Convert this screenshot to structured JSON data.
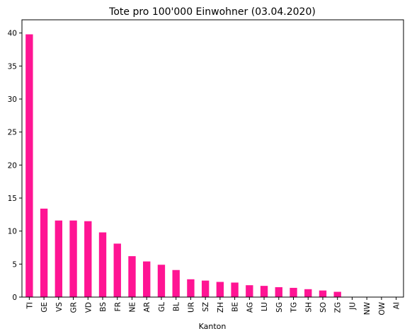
{
  "chart_data": {
    "type": "bar",
    "title": "Tote pro 100'000 Einwohner (03.04.2020)",
    "xlabel": "Kanton",
    "ylabel": "",
    "ylim": [
      0,
      42
    ],
    "yticks": [
      0,
      5,
      10,
      15,
      20,
      25,
      30,
      35,
      40
    ],
    "grid": false,
    "bar_color": "#ff1493",
    "categories": [
      "TI",
      "GE",
      "VS",
      "GR",
      "VD",
      "BS",
      "FR",
      "NE",
      "AR",
      "GL",
      "BL",
      "UR",
      "SZ",
      "ZH",
      "BE",
      "AG",
      "LU",
      "SG",
      "TG",
      "SH",
      "SO",
      "ZG",
      "JU",
      "NW",
      "OW",
      "AI"
    ],
    "values": [
      39.8,
      13.4,
      11.6,
      11.6,
      11.5,
      9.8,
      8.1,
      6.2,
      5.4,
      4.9,
      4.1,
      2.7,
      2.5,
      2.3,
      2.2,
      1.8,
      1.7,
      1.5,
      1.4,
      1.2,
      1.0,
      0.8,
      0,
      0,
      0,
      0
    ]
  }
}
